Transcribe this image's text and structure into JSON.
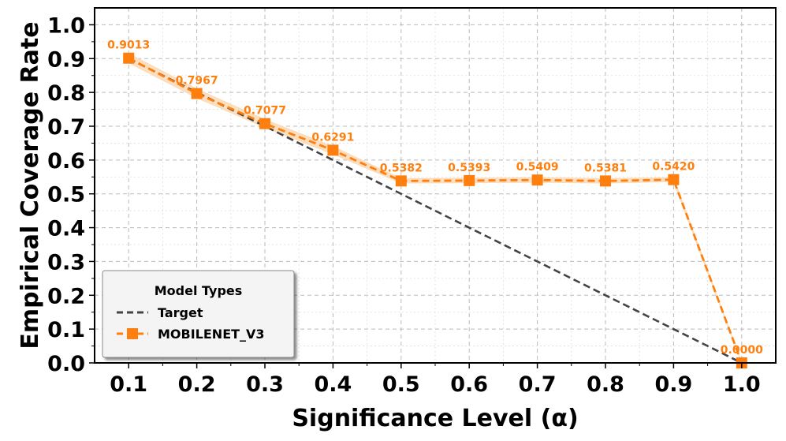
{
  "chart_data": {
    "type": "line",
    "title": "",
    "xlabel": "Significance Level (α)",
    "ylabel": "Empirical Coverage Rate",
    "xlim": [
      0.05,
      1.05
    ],
    "ylim": [
      0.0,
      1.05
    ],
    "x_ticks": [
      "0.1",
      "0.2",
      "0.3",
      "0.4",
      "0.5",
      "0.6",
      "0.7",
      "0.8",
      "0.9",
      "1.0"
    ],
    "x_tick_values": [
      0.1,
      0.2,
      0.3,
      0.4,
      0.5,
      0.6,
      0.7,
      0.8,
      0.9,
      1.0
    ],
    "y_ticks": [
      "0.0",
      "0.1",
      "0.2",
      "0.3",
      "0.4",
      "0.5",
      "0.6",
      "0.7",
      "0.8",
      "0.9",
      "1.0"
    ],
    "y_tick_values": [
      0.0,
      0.1,
      0.2,
      0.3,
      0.4,
      0.5,
      0.6,
      0.7,
      0.8,
      0.9,
      1.0
    ],
    "grid": true,
    "legend": {
      "title": "Model Types",
      "position": "lower-left",
      "entries": [
        "Target",
        "MOBILENET_V3"
      ]
    },
    "series": [
      {
        "name": "Target",
        "style": "dashed",
        "color": "#444444",
        "x": [
          0.1,
          1.0
        ],
        "values": [
          0.9,
          0.0
        ]
      },
      {
        "name": "MOBILENET_V3",
        "style": "dashed-square-markers",
        "color": "#ff7f0e",
        "band_color": "#fdd9b5",
        "x": [
          0.1,
          0.2,
          0.3,
          0.4,
          0.5,
          0.6,
          0.7,
          0.8,
          0.9,
          1.0
        ],
        "values": [
          0.9013,
          0.7967,
          0.7077,
          0.6291,
          0.5382,
          0.5393,
          0.5409,
          0.5381,
          0.542,
          0.0
        ],
        "band_lower": [
          0.888,
          0.784,
          0.696,
          0.618,
          0.532,
          0.533,
          0.534,
          0.532,
          0.536,
          0.0
        ],
        "band_upper": [
          0.915,
          0.81,
          0.72,
          0.64,
          0.545,
          0.546,
          0.548,
          0.545,
          0.548,
          0.0
        ],
        "labels": [
          "0.9013",
          "0.7967",
          "0.7077",
          "0.6291",
          "0.5382",
          "0.5393",
          "0.5409",
          "0.5381",
          "0.5420",
          "0.0000"
        ]
      }
    ]
  }
}
